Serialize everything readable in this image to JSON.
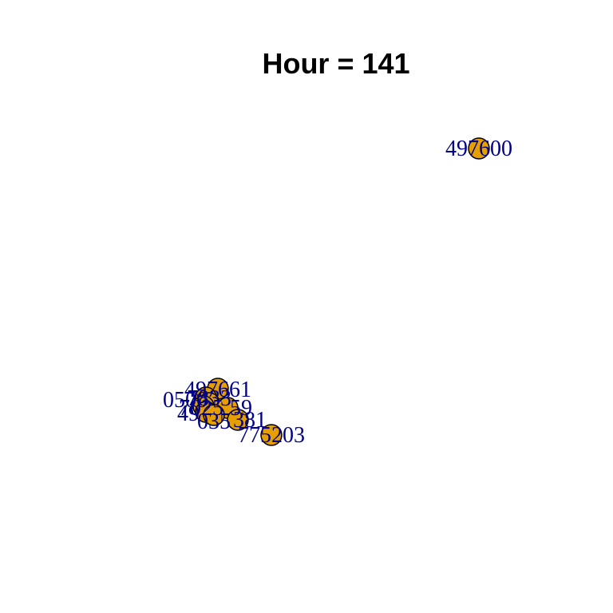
{
  "title": "Hour = 141",
  "colors": {
    "node_fill": "#E69F00",
    "node_stroke": "#000000",
    "label": "#00008B",
    "background": "#FFFFFF"
  },
  "nodes": [
    {
      "id": "n1",
      "label": "497600"
    },
    {
      "id": "n2",
      "label": "497661"
    },
    {
      "id": "n3",
      "label": "0500"
    },
    {
      "id": "n4",
      "label": "7833"
    },
    {
      "id": "n5",
      "label": "7025"
    },
    {
      "id": "n6",
      "label": "49"
    },
    {
      "id": "n7",
      "label": "59"
    },
    {
      "id": "n8",
      "label": "035"
    },
    {
      "id": "n9",
      "label": "381"
    },
    {
      "id": "n10",
      "label": "775203"
    }
  ]
}
